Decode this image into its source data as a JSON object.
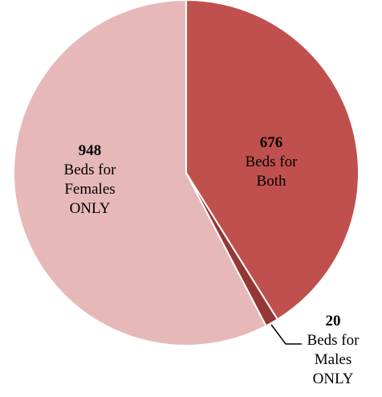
{
  "chart_data": {
    "type": "pie",
    "categories": [
      "Beds for Both",
      "Beds for Males ONLY",
      "Beds for Females ONLY"
    ],
    "values": [
      676,
      20,
      948
    ],
    "colors": [
      "#c0504d",
      "#953735",
      "#e6b9b8"
    ]
  }
}
